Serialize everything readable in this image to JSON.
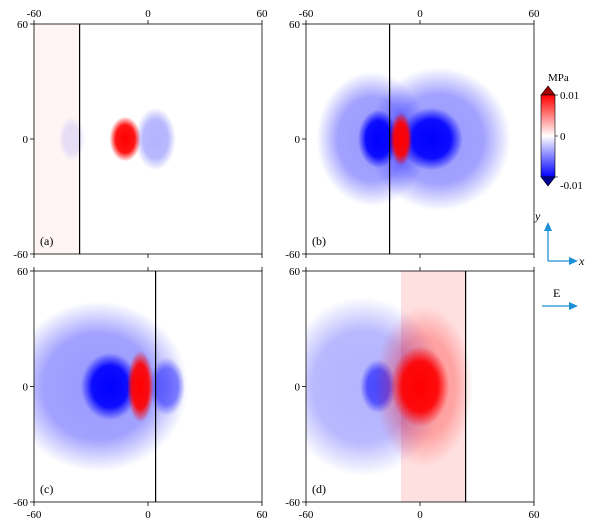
{
  "chart_data": {
    "type": "heatmap",
    "colorbar": {
      "unit": "MPa",
      "min": -0.01,
      "max": 0.01,
      "tick_labels": [
        "0.01",
        "0",
        "-0.01"
      ],
      "tick_values": [
        0.01,
        0,
        -0.01
      ],
      "colors": {
        "negative": "#0000ff",
        "zero": "#ffffff",
        "positive": "#ff0000"
      }
    },
    "axes": {
      "xlim": [
        -60,
        60
      ],
      "ylim": [
        -60,
        60
      ],
      "ticks": [
        -60,
        0,
        60
      ]
    },
    "panels": [
      {
        "label": "(a)",
        "x_tick_labels_top": [
          "-60",
          "0",
          "60"
        ],
        "x_tick_labels_bottom": [],
        "y_tick_labels": [
          "60",
          "0",
          "-60"
        ],
        "fault_x": -36,
        "background": {
          "x_from": -60,
          "x_to": -36,
          "value": 0.0004
        },
        "blobs": [
          {
            "x": -12,
            "y": 0,
            "rx": 7,
            "ry": 10,
            "value": 0.012
          },
          {
            "x": 4,
            "y": 0,
            "rx": 9,
            "ry": 14,
            "value": -0.003
          },
          {
            "x": -40,
            "y": 0,
            "rx": 6,
            "ry": 10,
            "value": -0.001
          }
        ]
      },
      {
        "label": "(b)",
        "x_tick_labels_top": [
          "-60",
          "0",
          "60"
        ],
        "x_tick_labels_bottom": [],
        "y_tick_labels": [
          "60",
          "0",
          "-60"
        ],
        "fault_x": -16,
        "background": null,
        "blobs": [
          {
            "x": -25,
            "y": 0,
            "rx": 25,
            "ry": 30,
            "value": -0.004
          },
          {
            "x": 10,
            "y": 0,
            "rx": 32,
            "ry": 32,
            "value": -0.004
          },
          {
            "x": -22,
            "y": 0,
            "rx": 9,
            "ry": 13,
            "value": -0.012
          },
          {
            "x": 6,
            "y": 0,
            "rx": 14,
            "ry": 14,
            "value": -0.015
          },
          {
            "x": -10,
            "y": 0,
            "rx": 5,
            "ry": 12,
            "value": 0.016
          }
        ]
      },
      {
        "label": "(c)",
        "x_tick_labels_top": [],
        "x_tick_labels_bottom": [
          "-60",
          "0",
          "60"
        ],
        "y_tick_labels": [
          "60",
          "0",
          "-60"
        ],
        "fault_x": 4,
        "background": null,
        "blobs": [
          {
            "x": -26,
            "y": 0,
            "rx": 40,
            "ry": 38,
            "value": -0.004
          },
          {
            "x": -20,
            "y": 0,
            "rx": 13,
            "ry": 15,
            "value": -0.015
          },
          {
            "x": 10,
            "y": 0,
            "rx": 8,
            "ry": 13,
            "value": -0.005
          },
          {
            "x": -4,
            "y": 0,
            "rx": 6,
            "ry": 16,
            "value": 0.016
          }
        ]
      },
      {
        "label": "(d)",
        "x_tick_labels_top": [],
        "x_tick_labels_bottom": [
          "-60",
          "0",
          "60"
        ],
        "y_tick_labels": [
          "60",
          "0",
          "-60"
        ],
        "fault_x": 24,
        "background": {
          "x_from": -10,
          "x_to": 24,
          "value": 0.0012
        },
        "blobs": [
          {
            "x": -30,
            "y": 0,
            "rx": 36,
            "ry": 40,
            "value": -0.003
          },
          {
            "x": -22,
            "y": 0,
            "rx": 8,
            "ry": 12,
            "value": -0.006
          },
          {
            "x": 2,
            "y": 0,
            "rx": 22,
            "ry": 36,
            "value": 0.003
          },
          {
            "x": 0,
            "y": 0,
            "rx": 13,
            "ry": 18,
            "value": 0.016
          }
        ]
      }
    ]
  },
  "legend": {
    "x_axis_letter": "x",
    "y_axis_letter": "y",
    "direction_label": "E",
    "arrow_color": "#1e90d6"
  }
}
